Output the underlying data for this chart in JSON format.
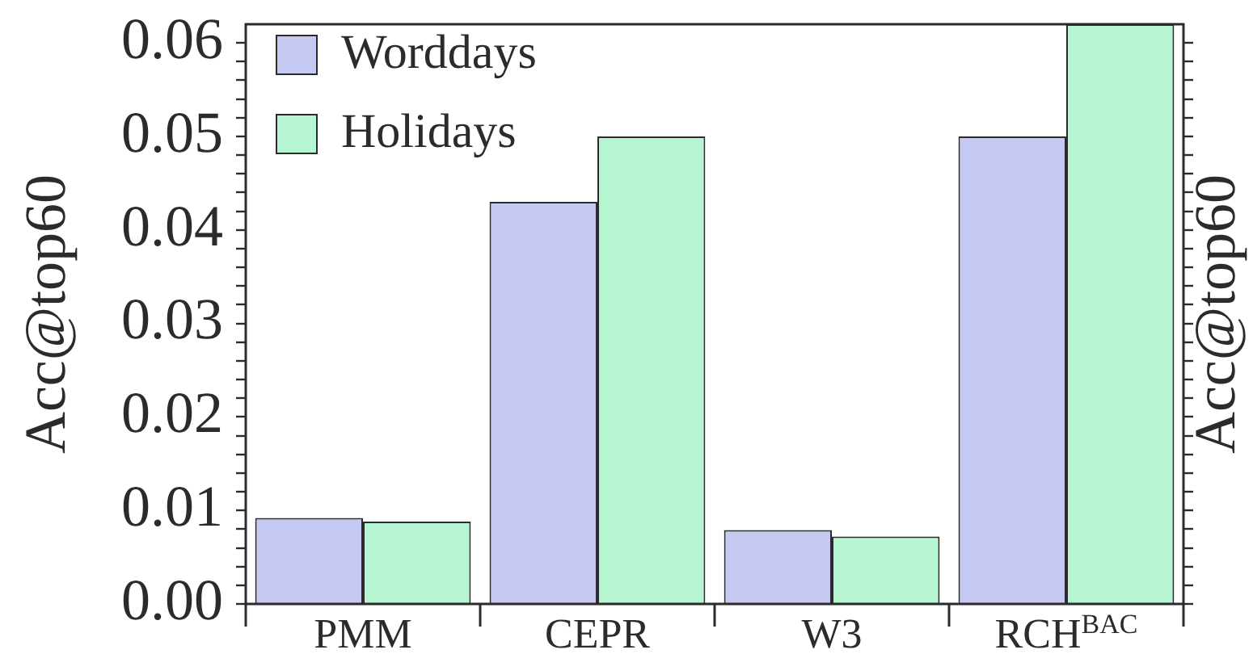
{
  "chart_data": {
    "type": "bar",
    "categories": [
      "PMM",
      "CEPR",
      "W3",
      "RCH$^{BAC}$"
    ],
    "series": [
      {
        "name": "Worddays",
        "color": "#c6c9f1",
        "values": [
          0.0092,
          0.043,
          0.0079,
          0.05
        ]
      },
      {
        "name": "Holidays",
        "color": "#b6f5d1",
        "values": [
          0.0088,
          0.05,
          0.0072,
          0.062
        ]
      }
    ],
    "ylabel": "Acc@top60",
    "y2label": "Acc@top60",
    "ylim": [
      0,
      0.062
    ],
    "yticks": [
      {
        "value": 0,
        "label": "0.00"
      },
      {
        "value": 0.002,
        "label": null
      },
      {
        "value": 0.004,
        "label": null
      },
      {
        "value": 0.006,
        "label": null
      },
      {
        "value": 0.008,
        "label": null
      },
      0.01,
      {
        "value": 0.012,
        "label": null
      },
      {
        "value": 0.014,
        "label": null
      },
      {
        "value": 0.016,
        "label": null
      },
      {
        "value": 0.018,
        "label": null
      },
      0.02,
      {
        "value": 0.022,
        "label": null
      },
      {
        "value": 0.024,
        "label": null
      },
      {
        "value": 0.026,
        "label": null
      },
      {
        "value": 0.028,
        "label": null
      },
      0.03,
      {
        "value": 0.032,
        "label": null
      },
      {
        "value": 0.034,
        "label": null
      },
      {
        "value": 0.036,
        "label": null
      },
      {
        "value": 0.038,
        "label": null
      },
      0.04,
      {
        "value": 0.042,
        "label": null
      },
      {
        "value": 0.044,
        "label": null
      },
      {
        "value": 0.046,
        "label": null
      },
      {
        "value": 0.048,
        "label": null
      },
      0.05,
      {
        "value": 0.052,
        "label": null
      },
      {
        "value": 0.054,
        "label": null
      },
      {
        "value": 0.056,
        "label": null
      },
      {
        "value": 0.058,
        "label": null
      },
      0.06
    ],
    "legend": "top left",
    "grid": false
  }
}
